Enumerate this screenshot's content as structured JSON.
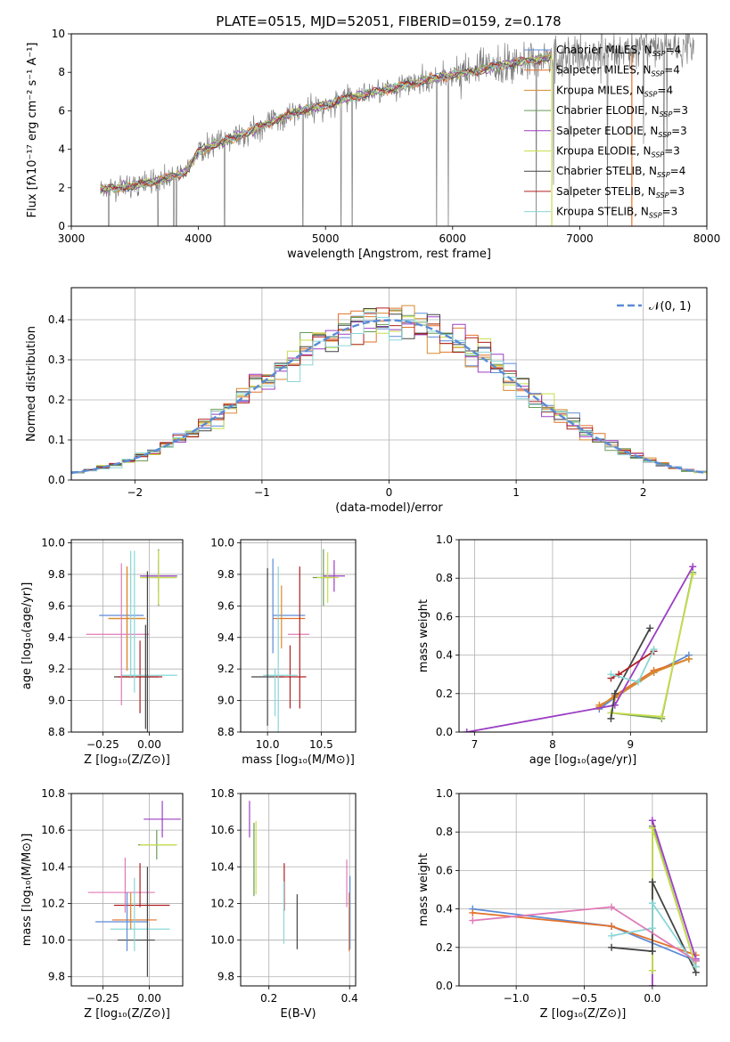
{
  "figure": {
    "title": "PLATE=0515, MJD=52051, FIBERID=0159, z=0.178"
  },
  "models": [
    {
      "name": "Chabrier MILES",
      "nssp": "4",
      "color": "#5b8bd6"
    },
    {
      "name": "Salpeter MILES",
      "nssp": "4",
      "color": "#e3712a"
    },
    {
      "name": "Kroupa MILES",
      "nssp": "4",
      "color": "#d88a2e"
    },
    {
      "name": "Chabrier ELODIE",
      "nssp": "3",
      "color": "#6a9a5a"
    },
    {
      "name": "Salpeter ELODIE",
      "nssp": "3",
      "color": "#9b3fc4"
    },
    {
      "name": "Kroupa ELODIE",
      "nssp": "3",
      "color": "#c8de4c"
    },
    {
      "name": "Chabrier STELIB",
      "nssp": "4",
      "color": "#444444"
    },
    {
      "name": "Salpeter STELIB",
      "nssp": "3",
      "color": "#b02020"
    },
    {
      "name": "Kroupa STELIB",
      "nssp": "3",
      "color": "#8ad6d6"
    }
  ],
  "chart_data": [
    {
      "id": "spectrum",
      "type": "line",
      "xlabel": "wavelength [Angstrom, rest frame]",
      "ylabel": "Flux [fλ10⁻¹⁷ erg cm⁻² s⁻¹ A⁻¹]",
      "xlim": [
        3000,
        8000
      ],
      "ylim": [
        0,
        10
      ],
      "xticks": [
        "3000",
        "4000",
        "5000",
        "6000",
        "7000",
        "8000"
      ],
      "yticks": [
        "0",
        "2",
        "4",
        "6",
        "8",
        "10"
      ],
      "legend": "top-right",
      "data_color": "#808080",
      "continuum": {
        "x": [
          3230,
          3500,
          3700,
          3900,
          4000,
          4200,
          4400,
          4600,
          4800,
          5000,
          5200,
          5400,
          5600,
          5800,
          6000,
          6200,
          6400,
          6600,
          6780
        ],
        "y": [
          1.9,
          2.1,
          2.4,
          2.8,
          3.9,
          4.4,
          4.9,
          5.5,
          6.0,
          6.3,
          6.7,
          7.0,
          7.3,
          7.6,
          7.9,
          8.1,
          8.4,
          8.6,
          8.8
        ]
      }
    },
    {
      "id": "residuals",
      "type": "line",
      "xlabel": "(data-model)/error",
      "ylabel": "Normed distribution",
      "xlim": [
        -2.5,
        2.5
      ],
      "ylim": [
        0,
        0.48
      ],
      "xticks": [
        "−2",
        "−1",
        "0",
        "1",
        "2"
      ],
      "yticks": [
        "0.0",
        "0.1",
        "0.2",
        "0.3",
        "0.4"
      ],
      "legend": "top-right",
      "reference_label": "𝒩(0, 1)",
      "reference_color": "#5b8bd6"
    },
    {
      "id": "age-vs-z",
      "type": "scatter",
      "xlabel": "Z [log₁₀(Z/Z⊙)]",
      "ylabel": "age  [log₁₀(age/yr)]",
      "xlim": [
        -0.42,
        0.18
      ],
      "ylim": [
        8.8,
        10.02
      ],
      "xticks": [
        "−0.25",
        "0.00"
      ],
      "yticks": [
        "8.8",
        "9.0",
        "9.2",
        "9.4",
        "9.6",
        "9.8",
        "10.0"
      ]
    },
    {
      "id": "age-vs-mass",
      "type": "scatter",
      "xlabel": "mass [log₁₀(M/M⊙)]",
      "ylabel": "",
      "xlim": [
        9.75,
        10.82
      ],
      "ylim": [
        8.8,
        10.02
      ],
      "xticks": [
        "10.0",
        "10.5"
      ],
      "yticks": [
        "8.8",
        "9.0",
        "9.2",
        "9.4",
        "9.6",
        "9.8",
        "10.0"
      ]
    },
    {
      "id": "weight-vs-age",
      "type": "line",
      "xlabel": "age  [log₁₀(age/yr)]",
      "ylabel": "mass weight",
      "xlim": [
        6.8,
        9.98
      ],
      "ylim": [
        0,
        1
      ],
      "xticks": [
        "7",
        "8",
        "9"
      ],
      "yticks": [
        "0.0",
        "0.2",
        "0.4",
        "0.6",
        "0.8",
        "1.0"
      ]
    },
    {
      "id": "mass-vs-z",
      "type": "scatter",
      "xlabel": "Z [log₁₀(Z/Z⊙)]",
      "ylabel": "mass [log₁₀(M/M⊙)]",
      "xlim": [
        -0.42,
        0.18
      ],
      "ylim": [
        9.75,
        10.8
      ],
      "xticks": [
        "−0.25",
        "0.00"
      ],
      "yticks": [
        "9.8",
        "10.0",
        "10.2",
        "10.4",
        "10.6",
        "10.8"
      ]
    },
    {
      "id": "mass-vs-ebv",
      "type": "scatter",
      "xlabel": "E(B-V)",
      "ylabel": "",
      "xlim": [
        0.13,
        0.415
      ],
      "ylim": [
        9.75,
        10.8
      ],
      "xticks": [
        "0.2",
        "0.4"
      ],
      "yticks": [
        "9.8",
        "10.0",
        "10.2",
        "10.4",
        "10.6",
        "10.8"
      ]
    },
    {
      "id": "weight-vs-z",
      "type": "line",
      "xlabel": "Z [log₁₀(Z/Z⊙)]",
      "ylabel": "mass weight",
      "xlim": [
        -1.42,
        0.4
      ],
      "ylim": [
        0,
        1
      ],
      "xticks": [
        "−1.0",
        "−0.5",
        "0.0"
      ],
      "yticks": [
        "0.0",
        "0.2",
        "0.4",
        "0.6",
        "0.8",
        "1.0"
      ]
    }
  ],
  "solutions": {
    "age_z": [
      {
        "m": 0,
        "z": -0.15,
        "age": 9.54,
        "zerr": 0.12,
        "ageerr": 0.0
      },
      {
        "m": 1,
        "z": -0.12,
        "age": 9.52,
        "zerr": 0.1,
        "ageerr": 0.33
      },
      {
        "m": 2,
        "z": -0.12,
        "age": 9.52,
        "zerr": 0.1,
        "ageerr": 0.33
      },
      {
        "m": 3,
        "z": 0.05,
        "age": 9.78,
        "zerr": 0.09,
        "ageerr": 0.18
      },
      {
        "m": 4,
        "z": 0.05,
        "age": 9.79,
        "zerr": 0.1,
        "ageerr": 0.1
      },
      {
        "m": 5,
        "z": 0.05,
        "age": 9.78,
        "zerr": 0.1,
        "ageerr": 0.17
      },
      {
        "m": 6,
        "z": -0.07,
        "age": 9.15,
        "zerr": 0.12,
        "ageerr": 0.0
      },
      {
        "m": 7,
        "z": -0.05,
        "age": 9.15,
        "zerr": 0.12,
        "ageerr": 0.23
      },
      {
        "m": 8,
        "z": 0.0,
        "age": 9.16,
        "zerr": 0.15,
        "ageerr": 0.0
      }
    ],
    "extra_age_z": [
      {
        "color": "#e07ab8",
        "z": -0.17,
        "age": 9.42,
        "zerr": 0.17,
        "ageerr": 0.0
      },
      {
        "color": "#e07ab8",
        "z": -0.15,
        "age": 9.42,
        "zerr": 0.0,
        "ageerr": 0.45
      },
      {
        "color": "#444444",
        "z": -0.02,
        "age": 9.15,
        "zerr": 0.0,
        "ageerr": 0.33
      },
      {
        "color": "#444444",
        "z": -0.01,
        "age": 9.1,
        "zerr": 0.0,
        "ageerr": 0.72
      },
      {
        "color": "#8ad6d6",
        "z": -0.1,
        "age": 9.55,
        "zerr": 0.0,
        "ageerr": 0.4
      },
      {
        "color": "#8ad6d6",
        "z": -0.08,
        "age": 9.5,
        "zerr": 0.0,
        "ageerr": 0.45
      }
    ],
    "weights_age": [
      {
        "m": 0,
        "age": [
          8.6,
          8.8,
          9.3,
          9.75
        ],
        "w": [
          0.12,
          0.18,
          0.31,
          0.4
        ]
      },
      {
        "m": 1,
        "age": [
          8.6,
          8.8,
          9.3,
          9.75
        ],
        "w": [
          0.13,
          0.19,
          0.32,
          0.38
        ]
      },
      {
        "m": 2,
        "age": [
          8.6,
          8.8,
          9.3,
          9.75
        ],
        "w": [
          0.14,
          0.18,
          0.31,
          0.38
        ]
      },
      {
        "m": 3,
        "age": [
          8.75,
          9.4,
          9.8
        ],
        "w": [
          0.1,
          0.07,
          0.83
        ]
      },
      {
        "m": 4,
        "age": [
          6.9,
          8.8,
          9.8
        ],
        "w": [
          0.0,
          0.14,
          0.86
        ]
      },
      {
        "m": 5,
        "age": [
          8.75,
          9.4,
          9.8
        ],
        "w": [
          0.1,
          0.08,
          0.82
        ]
      },
      {
        "m": 6,
        "age": [
          8.75,
          8.8,
          9.25
        ],
        "w": [
          0.07,
          0.2,
          0.54
        ]
      },
      {
        "m": 7,
        "age": [
          8.75,
          8.85,
          9.3
        ],
        "w": [
          0.28,
          0.3,
          0.42
        ]
      },
      {
        "m": 8,
        "age": [
          8.75,
          9.1,
          9.3
        ],
        "w": [
          0.3,
          0.26,
          0.43
        ]
      }
    ],
    "weights_z": [
      {
        "m": 0,
        "z": [
          -1.32,
          -0.3,
          0.32
        ],
        "w": [
          0.4,
          0.31,
          0.13
        ]
      },
      {
        "m": 1,
        "z": [
          -1.32,
          -0.3,
          0.32
        ],
        "w": [
          0.38,
          0.31,
          0.16
        ]
      },
      {
        "m": 3,
        "z": [
          0.0,
          0.0,
          0.32
        ],
        "w": [
          0.08,
          0.83,
          0.1
        ]
      },
      {
        "m": 4,
        "z": [
          0.0,
          0.0,
          0.32
        ],
        "w": [
          0.0,
          0.86,
          0.14
        ]
      },
      {
        "m": 5,
        "z": [
          0.0,
          0.0,
          0.32
        ],
        "w": [
          0.08,
          0.82,
          0.1
        ]
      },
      {
        "m": 6,
        "z": [
          -0.3,
          0.0,
          0.0,
          0.32
        ],
        "w": [
          0.2,
          0.18,
          0.54,
          0.07
        ]
      },
      {
        "m": 8,
        "z": [
          -0.3,
          0.0,
          0.0,
          0.32
        ],
        "w": [
          0.26,
          0.3,
          0.43,
          0.1
        ]
      },
      {
        "color": "#e07ab8",
        "z": [
          -1.32,
          -0.3,
          0.32
        ],
        "w": [
          0.34,
          0.41,
          0.13
        ]
      }
    ],
    "mass_z": [
      {
        "m": 0,
        "z": -0.15,
        "mass": 10.1,
        "zerr": 0.14,
        "masserr": 0.0
      },
      {
        "m": 1,
        "z": -0.08,
        "mass": 10.11,
        "zerr": 0.12,
        "masserr": 0.0
      },
      {
        "m": 3,
        "z": 0.04,
        "mass": 10.52,
        "zerr": 0.1,
        "masserr": 0.08
      },
      {
        "m": 4,
        "z": 0.07,
        "mass": 10.66,
        "zerr": 0.1,
        "masserr": 0.1
      },
      {
        "m": 5,
        "z": 0.05,
        "mass": 10.52,
        "zerr": 0.1,
        "masserr": 0.0
      },
      {
        "m": 6,
        "z": -0.07,
        "mass": 10.0,
        "zerr": 0.1,
        "masserr": 0.0
      },
      {
        "m": 7,
        "z": -0.04,
        "mass": 10.19,
        "zerr": 0.15,
        "masserr": 0.0
      },
      {
        "m": 8,
        "z": -0.05,
        "mass": 10.06,
        "zerr": 0.16,
        "masserr": 0.0
      }
    ],
    "extra_mass_z": [
      {
        "color": "#e07ab8",
        "z": -0.15,
        "mass": 10.26,
        "zerr": 0.18,
        "masserr": 0.0
      },
      {
        "color": "#e07ab8",
        "z": -0.13,
        "mass": 10.3,
        "zerr": 0.0,
        "masserr": 0.15
      },
      {
        "color": "#5b8bd6",
        "z": -0.12,
        "mass": 10.1,
        "zerr": 0.0,
        "masserr": 0.16
      },
      {
        "color": "#444444",
        "z": -0.01,
        "mass": 10.1,
        "zerr": 0.0,
        "masserr": 0.3
      },
      {
        "color": "#8ad6d6",
        "z": -0.08,
        "mass": 10.14,
        "zerr": 0.0,
        "masserr": 0.2
      },
      {
        "color": "#b02020",
        "z": -0.05,
        "mass": 10.3,
        "zerr": 0.0,
        "masserr": 0.12
      },
      {
        "color": "#d88a2e",
        "z": -0.1,
        "mass": 10.16,
        "zerr": 0.0,
        "masserr": 0.1
      }
    ],
    "mass_ebv": [
      {
        "color": "#9b3fc4",
        "ebv": 0.152,
        "mass": 10.66,
        "masserr": 0.1
      },
      {
        "color": "#c8de4c",
        "ebv": 0.168,
        "mass": 10.45,
        "masserr": 0.2
      },
      {
        "color": "#6a9a5a",
        "ebv": 0.163,
        "mass": 10.44,
        "masserr": 0.2
      },
      {
        "color": "#b02020",
        "ebv": 0.238,
        "mass": 10.29,
        "masserr": 0.13
      },
      {
        "color": "#8ad6d6",
        "ebv": 0.237,
        "mass": 10.15,
        "masserr": 0.17
      },
      {
        "color": "#444444",
        "ebv": 0.27,
        "mass": 10.1,
        "masserr": 0.15
      },
      {
        "color": "#e07ab8",
        "ebv": 0.393,
        "mass": 10.31,
        "masserr": 0.13
      },
      {
        "color": "#e3712a",
        "ebv": 0.399,
        "mass": 10.1,
        "masserr": 0.16
      },
      {
        "color": "#5b8bd6",
        "ebv": 0.401,
        "mass": 10.15,
        "masserr": 0.2
      }
    ],
    "mass_massx": [
      {
        "m": 0,
        "mass": 10.2,
        "age": 9.54,
        "masserr": 0.15,
        "ageerr": 0.0
      },
      {
        "m": 1,
        "mass": 10.2,
        "age": 9.52,
        "masserr": 0.15,
        "ageerr": 0.0
      },
      {
        "m": 3,
        "mass": 10.52,
        "age": 9.78,
        "masserr": 0.1,
        "ageerr": 0.18
      },
      {
        "m": 4,
        "mass": 10.62,
        "age": 9.79,
        "masserr": 0.1,
        "ageerr": 0.1
      },
      {
        "m": 5,
        "mass": 10.56,
        "age": 9.78,
        "masserr": 0.1,
        "ageerr": 0.16
      },
      {
        "m": 6,
        "mass": 10.0,
        "age": 9.15,
        "masserr": 0.15,
        "ageerr": 0.0
      },
      {
        "m": 7,
        "mass": 10.21,
        "age": 9.15,
        "masserr": 0.15,
        "ageerr": 0.2
      },
      {
        "m": 8,
        "mass": 10.12,
        "age": 9.16,
        "masserr": 0.16,
        "ageerr": 0.0
      }
    ],
    "extra_mass_mass": [
      {
        "color": "#e07ab8",
        "mass": 10.29,
        "age": 9.42,
        "masserr": 0.1,
        "ageerr": 0.0
      },
      {
        "color": "#444444",
        "mass": 10.0,
        "age": 9.34,
        "masserr": 0.0,
        "ageerr": 0.5
      },
      {
        "color": "#8ad6d6",
        "mass": 10.1,
        "age": 9.3,
        "masserr": 0.0,
        "ageerr": 0.55
      },
      {
        "color": "#b02020",
        "mass": 10.3,
        "age": 9.4,
        "masserr": 0.0,
        "ageerr": 0.45
      },
      {
        "color": "#8ad6d6",
        "mass": 10.07,
        "age": 9.05,
        "masserr": 0.0,
        "ageerr": 0.15
      },
      {
        "color": "#5b8bd6",
        "mass": 10.05,
        "age": 9.6,
        "masserr": 0.0,
        "ageerr": 0.3
      },
      {
        "color": "#d88a2e",
        "mass": 10.13,
        "age": 9.53,
        "masserr": 0.0,
        "ageerr": 0.2
      }
    ]
  }
}
